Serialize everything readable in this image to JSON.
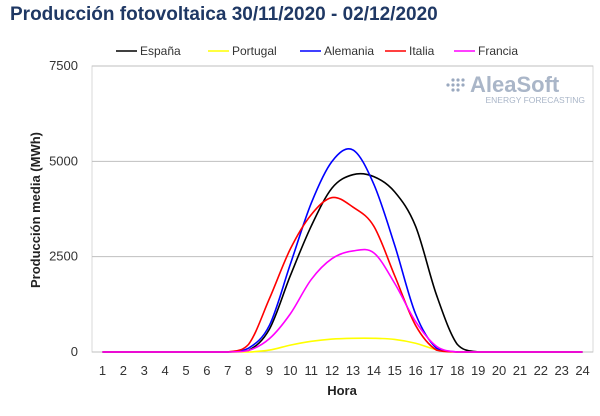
{
  "chart_data": {
    "type": "line",
    "title": "Producción fotovoltaica 30/11/2020 - 02/12/2020",
    "xlabel": "Hora",
    "ylabel": "Producción media (MWh)",
    "x": [
      1,
      2,
      3,
      4,
      5,
      6,
      7,
      8,
      9,
      10,
      11,
      12,
      13,
      14,
      15,
      16,
      17,
      18,
      19,
      20,
      21,
      22,
      23,
      24
    ],
    "ylim": [
      0,
      7500
    ],
    "yticks": [
      0,
      2500,
      5000,
      7500
    ],
    "ytick_labels": [
      "0",
      "2500",
      "5000",
      "7500"
    ],
    "grid": true,
    "legend_position": "top",
    "series": [
      {
        "name": "España",
        "color": "#000000",
        "values": [
          0,
          0,
          0,
          0,
          0,
          0,
          0,
          40,
          600,
          2000,
          3300,
          4300,
          4650,
          4600,
          4200,
          3300,
          1500,
          200,
          0,
          0,
          0,
          0,
          0,
          0
        ]
      },
      {
        "name": "Portugal",
        "color": "#ffff00",
        "values": [
          0,
          0,
          0,
          0,
          0,
          0,
          0,
          0,
          50,
          180,
          280,
          340,
          360,
          360,
          330,
          230,
          60,
          0,
          0,
          0,
          0,
          0,
          0,
          0
        ]
      },
      {
        "name": "Alemania",
        "color": "#0000ff",
        "values": [
          0,
          0,
          0,
          0,
          0,
          0,
          0,
          100,
          700,
          2300,
          3900,
          5000,
          5300,
          4400,
          2800,
          1000,
          100,
          0,
          0,
          0,
          0,
          0,
          0,
          0
        ]
      },
      {
        "name": "Italia",
        "color": "#ff0000",
        "values": [
          0,
          0,
          0,
          0,
          0,
          0,
          0,
          200,
          1400,
          2700,
          3600,
          4050,
          3800,
          3300,
          2000,
          700,
          50,
          0,
          0,
          0,
          0,
          0,
          0,
          0
        ]
      },
      {
        "name": "Francia",
        "color": "#ff00ff",
        "values": [
          0,
          0,
          0,
          0,
          0,
          0,
          0,
          40,
          350,
          1000,
          1900,
          2450,
          2650,
          2600,
          1800,
          800,
          150,
          0,
          0,
          0,
          0,
          0,
          0,
          0
        ]
      }
    ]
  },
  "watermark": {
    "brand": "AleaSoft",
    "tagline": "ENERGY FORECASTING",
    "icon": "dots-logo"
  }
}
